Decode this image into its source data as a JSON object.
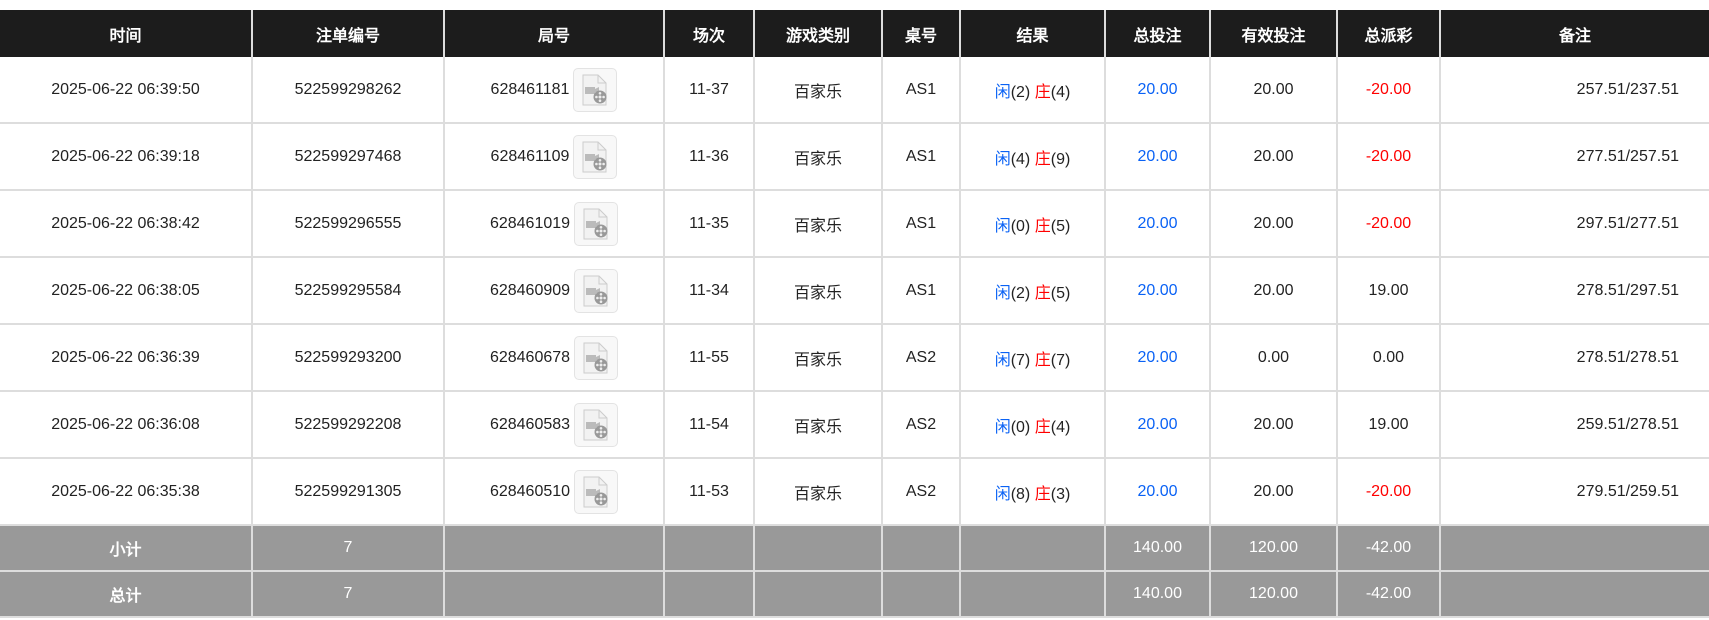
{
  "headers": [
    "时间",
    "注单编号",
    "局号",
    "场次",
    "游戏类别",
    "桌号",
    "结果",
    "总投注",
    "有效投注",
    "总派彩",
    "备注"
  ],
  "colors": {
    "player": "#0a62f5",
    "banker": "#ff0000",
    "negative": "#ff0000",
    "header_bg": "#1c1c1c",
    "summary_bg": "#999999"
  },
  "rows": [
    {
      "time": "2025-06-22 06:39:50",
      "bet_id": "522599298262",
      "round": "628461181",
      "shoe": "11-37",
      "game": "百家乐",
      "table": "AS1",
      "player_label": "闲",
      "player": "(2)",
      "banker_label": "庄",
      "banker": "(4)",
      "bet": "20.00",
      "valid": "20.00",
      "payout": "-20.00",
      "negative": true,
      "note": "257.51/237.51"
    },
    {
      "time": "2025-06-22 06:39:18",
      "bet_id": "522599297468",
      "round": "628461109",
      "shoe": "11-36",
      "game": "百家乐",
      "table": "AS1",
      "player_label": "闲",
      "player": "(4)",
      "banker_label": "庄",
      "banker": "(9)",
      "bet": "20.00",
      "valid": "20.00",
      "payout": "-20.00",
      "negative": true,
      "note": "277.51/257.51"
    },
    {
      "time": "2025-06-22 06:38:42",
      "bet_id": "522599296555",
      "round": "628461019",
      "shoe": "11-35",
      "game": "百家乐",
      "table": "AS1",
      "player_label": "闲",
      "player": "(0)",
      "banker_label": "庄",
      "banker": "(5)",
      "bet": "20.00",
      "valid": "20.00",
      "payout": "-20.00",
      "negative": true,
      "note": "297.51/277.51"
    },
    {
      "time": "2025-06-22 06:38:05",
      "bet_id": "522599295584",
      "round": "628460909",
      "shoe": "11-34",
      "game": "百家乐",
      "table": "AS1",
      "player_label": "闲",
      "player": "(2)",
      "banker_label": "庄",
      "banker": "(5)",
      "bet": "20.00",
      "valid": "20.00",
      "payout": "19.00",
      "negative": false,
      "note": "278.51/297.51"
    },
    {
      "time": "2025-06-22 06:36:39",
      "bet_id": "522599293200",
      "round": "628460678",
      "shoe": "11-55",
      "game": "百家乐",
      "table": "AS2",
      "player_label": "闲",
      "player": "(7)",
      "banker_label": "庄",
      "banker": "(7)",
      "bet": "20.00",
      "valid": "0.00",
      "payout": "0.00",
      "negative": false,
      "note": "278.51/278.51"
    },
    {
      "time": "2025-06-22 06:36:08",
      "bet_id": "522599292208",
      "round": "628460583",
      "shoe": "11-54",
      "game": "百家乐",
      "table": "AS2",
      "player_label": "闲",
      "player": "(0)",
      "banker_label": "庄",
      "banker": "(4)",
      "bet": "20.00",
      "valid": "20.00",
      "payout": "19.00",
      "negative": false,
      "note": "259.51/278.51"
    },
    {
      "time": "2025-06-22 06:35:38",
      "bet_id": "522599291305",
      "round": "628460510",
      "shoe": "11-53",
      "game": "百家乐",
      "table": "AS2",
      "player_label": "闲",
      "player": "(8)",
      "banker_label": "庄",
      "banker": "(3)",
      "bet": "20.00",
      "valid": "20.00",
      "payout": "-20.00",
      "negative": true,
      "note": "279.51/259.51"
    }
  ],
  "summary": [
    {
      "label": "小计",
      "count": "7",
      "bet": "140.00",
      "valid": "120.00",
      "payout": "-42.00"
    },
    {
      "label": "总计",
      "count": "7",
      "bet": "140.00",
      "valid": "120.00",
      "payout": "-42.00"
    }
  ]
}
